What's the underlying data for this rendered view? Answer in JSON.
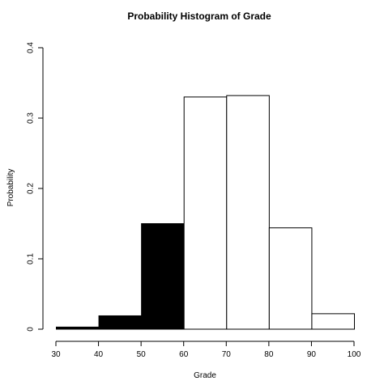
{
  "chart_data": {
    "type": "bar",
    "title": "Probability Histogram of Grade",
    "xlabel": "Grade",
    "ylabel": "Probability",
    "xlim": [
      30,
      100
    ],
    "ylim": [
      0,
      0.4
    ],
    "x_ticks": [
      "30",
      "40",
      "50",
      "60",
      "70",
      "80",
      "90",
      "100"
    ],
    "y_ticks": [
      "0",
      "0.1",
      "0.2",
      "0.3",
      "0.4"
    ],
    "bins": [
      {
        "from": 30,
        "to": 40,
        "value": 0.003,
        "fill": "#000000"
      },
      {
        "from": 40,
        "to": 50,
        "value": 0.019,
        "fill": "#000000"
      },
      {
        "from": 50,
        "to": 60,
        "value": 0.15,
        "fill": "#000000"
      },
      {
        "from": 60,
        "to": 70,
        "value": 0.33,
        "fill": "#ffffff"
      },
      {
        "from": 70,
        "to": 80,
        "value": 0.332,
        "fill": "#ffffff"
      },
      {
        "from": 80,
        "to": 90,
        "value": 0.144,
        "fill": "#ffffff"
      },
      {
        "from": 90,
        "to": 100,
        "value": 0.022,
        "fill": "#ffffff"
      }
    ],
    "grid": false,
    "legend": "none"
  }
}
